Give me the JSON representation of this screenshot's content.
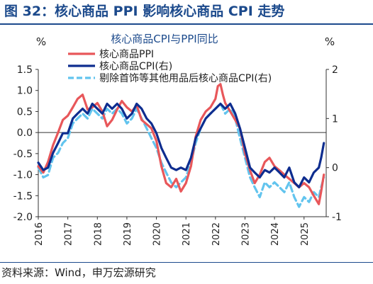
{
  "figure_title": "图 32：核心商品 PPI 影响核心商品 CPI 走势",
  "source": "资料来源：Wind，申万宏源研究",
  "chart_data": {
    "type": "line",
    "title": "核心商品CPI与PPI同比",
    "left_unit": "%",
    "right_unit": "%",
    "y_left_range": [
      -2.0,
      1.5
    ],
    "y_left_ticks": [
      "1.5",
      "1.0",
      "0.5",
      "0.0",
      "-0.5",
      "-1.0",
      "-1.5",
      "-2.0"
    ],
    "y_right_range": [
      -1,
      2
    ],
    "y_right_ticks": [
      "2",
      "1",
      "0",
      "-1"
    ],
    "x_range": [
      2016.0,
      2025.75
    ],
    "x_ticks": [
      "2016",
      "2017",
      "2018",
      "2019",
      "2020",
      "2021",
      "2022",
      "2023",
      "2024",
      "2025"
    ],
    "grid": false,
    "legend_position": "top-left",
    "colors": {
      "ppi": "#e8575a",
      "cpi": "#0e2d8f",
      "cpi_ex": "#62c4ee",
      "title": "#1c4a8c"
    },
    "series": [
      {
        "name": "核心商品PPI",
        "axis": "left",
        "style": "solid",
        "points": [
          [
            2016.0,
            -0.8
          ],
          [
            2016.17,
            -0.95
          ],
          [
            2016.33,
            -0.7
          ],
          [
            2016.5,
            -0.3
          ],
          [
            2016.67,
            0.0
          ],
          [
            2016.83,
            0.3
          ],
          [
            2017.0,
            0.4
          ],
          [
            2017.17,
            0.6
          ],
          [
            2017.33,
            0.8
          ],
          [
            2017.5,
            0.9
          ],
          [
            2017.67,
            0.55
          ],
          [
            2017.83,
            0.6
          ],
          [
            2018.0,
            0.7
          ],
          [
            2018.17,
            0.5
          ],
          [
            2018.33,
            0.15
          ],
          [
            2018.5,
            0.3
          ],
          [
            2018.67,
            0.55
          ],
          [
            2018.83,
            0.75
          ],
          [
            2019.0,
            0.6
          ],
          [
            2019.17,
            0.5
          ],
          [
            2019.33,
            0.65
          ],
          [
            2019.5,
            0.3
          ],
          [
            2019.67,
            0.2
          ],
          [
            2019.83,
            0.1
          ],
          [
            2020.0,
            -0.2
          ],
          [
            2020.17,
            -0.8
          ],
          [
            2020.33,
            -1.2
          ],
          [
            2020.5,
            -1.3
          ],
          [
            2020.67,
            -1.1
          ],
          [
            2020.83,
            -1.4
          ],
          [
            2021.0,
            -1.2
          ],
          [
            2021.17,
            -0.8
          ],
          [
            2021.33,
            -0.1
          ],
          [
            2021.5,
            0.3
          ],
          [
            2021.67,
            0.5
          ],
          [
            2021.83,
            0.6
          ],
          [
            2022.0,
            0.8
          ],
          [
            2022.08,
            1.1
          ],
          [
            2022.17,
            1.15
          ],
          [
            2022.25,
            0.9
          ],
          [
            2022.33,
            0.7
          ],
          [
            2022.5,
            0.5
          ],
          [
            2022.67,
            0.3
          ],
          [
            2022.83,
            0.1
          ],
          [
            2023.0,
            -0.5
          ],
          [
            2023.17,
            -0.9
          ],
          [
            2023.33,
            -1.2
          ],
          [
            2023.5,
            -1.0
          ],
          [
            2023.67,
            -0.7
          ],
          [
            2023.83,
            -0.6
          ],
          [
            2024.0,
            -0.8
          ],
          [
            2024.17,
            -0.9
          ],
          [
            2024.33,
            -1.0
          ],
          [
            2024.5,
            -1.1
          ],
          [
            2024.67,
            -1.2
          ],
          [
            2024.83,
            -1.3
          ],
          [
            2025.0,
            -1.2
          ],
          [
            2025.17,
            -1.3
          ],
          [
            2025.33,
            -1.5
          ],
          [
            2025.5,
            -1.7
          ],
          [
            2025.58,
            -1.4
          ],
          [
            2025.67,
            -1.0
          ]
        ]
      },
      {
        "name": "核心商品CPI(右)",
        "axis": "right",
        "style": "solid",
        "points": [
          [
            2016.0,
            0.1
          ],
          [
            2016.17,
            -0.05
          ],
          [
            2016.33,
            0.0
          ],
          [
            2016.5,
            0.3
          ],
          [
            2016.67,
            0.5
          ],
          [
            2016.83,
            0.7
          ],
          [
            2017.0,
            0.7
          ],
          [
            2017.17,
            1.0
          ],
          [
            2017.33,
            1.1
          ],
          [
            2017.5,
            1.2
          ],
          [
            2017.67,
            1.1
          ],
          [
            2017.83,
            1.3
          ],
          [
            2018.0,
            1.2
          ],
          [
            2018.17,
            1.1
          ],
          [
            2018.33,
            1.3
          ],
          [
            2018.5,
            1.2
          ],
          [
            2018.67,
            1.3
          ],
          [
            2018.83,
            1.2
          ],
          [
            2019.0,
            1.0
          ],
          [
            2019.17,
            1.1
          ],
          [
            2019.33,
            1.3
          ],
          [
            2019.5,
            1.2
          ],
          [
            2019.67,
            1.0
          ],
          [
            2019.83,
            0.9
          ],
          [
            2020.0,
            0.7
          ],
          [
            2020.17,
            0.4
          ],
          [
            2020.33,
            0.2
          ],
          [
            2020.5,
            0.0
          ],
          [
            2020.67,
            -0.05
          ],
          [
            2020.83,
            0.0
          ],
          [
            2021.0,
            -0.05
          ],
          [
            2021.17,
            0.2
          ],
          [
            2021.33,
            0.6
          ],
          [
            2021.5,
            0.8
          ],
          [
            2021.67,
            1.0
          ],
          [
            2021.83,
            1.1
          ],
          [
            2022.0,
            1.2
          ],
          [
            2022.17,
            1.3
          ],
          [
            2022.33,
            1.2
          ],
          [
            2022.5,
            1.3
          ],
          [
            2022.67,
            1.1
          ],
          [
            2022.83,
            0.8
          ],
          [
            2023.0,
            0.4
          ],
          [
            2023.17,
            0.0
          ],
          [
            2023.33,
            -0.1
          ],
          [
            2023.5,
            -0.2
          ],
          [
            2023.67,
            -0.05
          ],
          [
            2023.83,
            -0.1
          ],
          [
            2024.0,
            0.0
          ],
          [
            2024.17,
            -0.1
          ],
          [
            2024.33,
            -0.2
          ],
          [
            2024.5,
            0.0
          ],
          [
            2024.67,
            -0.3
          ],
          [
            2024.83,
            -0.4
          ],
          [
            2025.0,
            -0.2
          ],
          [
            2025.17,
            -0.3
          ],
          [
            2025.33,
            -0.1
          ],
          [
            2025.5,
            0.0
          ],
          [
            2025.58,
            0.2
          ],
          [
            2025.67,
            0.5
          ]
        ]
      },
      {
        "name": "剔除首饰等其他用品后核心商品CPI(右)",
        "axis": "right",
        "style": "dashed",
        "points": [
          [
            2016.0,
            0.0
          ],
          [
            2016.17,
            -0.2
          ],
          [
            2016.33,
            -0.15
          ],
          [
            2016.5,
            0.2
          ],
          [
            2016.67,
            0.3
          ],
          [
            2016.83,
            0.5
          ],
          [
            2017.0,
            0.6
          ],
          [
            2017.17,
            0.9
          ],
          [
            2017.33,
            1.0
          ],
          [
            2017.5,
            1.1
          ],
          [
            2017.67,
            1.0
          ],
          [
            2017.83,
            1.2
          ],
          [
            2018.0,
            1.1
          ],
          [
            2018.17,
            1.0
          ],
          [
            2018.33,
            1.2
          ],
          [
            2018.5,
            1.1
          ],
          [
            2018.67,
            1.2
          ],
          [
            2018.83,
            1.1
          ],
          [
            2019.0,
            0.9
          ],
          [
            2019.17,
            1.0
          ],
          [
            2019.33,
            1.2
          ],
          [
            2019.5,
            1.0
          ],
          [
            2019.67,
            0.8
          ],
          [
            2019.83,
            0.6
          ],
          [
            2020.0,
            0.4
          ],
          [
            2020.17,
            0.1
          ],
          [
            2020.33,
            -0.1
          ],
          [
            2020.5,
            -0.3
          ],
          [
            2020.67,
            -0.4
          ],
          [
            2020.83,
            -0.3
          ],
          [
            2021.0,
            -0.2
          ],
          [
            2021.17,
            0.1
          ],
          [
            2021.33,
            0.5
          ],
          [
            2021.5,
            0.8
          ],
          [
            2021.67,
            1.0
          ],
          [
            2021.83,
            1.1
          ],
          [
            2022.0,
            1.2
          ],
          [
            2022.17,
            1.3
          ],
          [
            2022.33,
            1.1
          ],
          [
            2022.5,
            1.2
          ],
          [
            2022.67,
            1.0
          ],
          [
            2022.83,
            0.6
          ],
          [
            2023.0,
            0.2
          ],
          [
            2023.17,
            -0.2
          ],
          [
            2023.33,
            -0.4
          ],
          [
            2023.5,
            -0.6
          ],
          [
            2023.67,
            -0.3
          ],
          [
            2023.83,
            -0.4
          ],
          [
            2024.0,
            -0.3
          ],
          [
            2024.17,
            -0.4
          ],
          [
            2024.33,
            -0.5
          ],
          [
            2024.5,
            -0.3
          ],
          [
            2024.67,
            -0.6
          ],
          [
            2024.83,
            -0.8
          ],
          [
            2025.0,
            -0.6
          ],
          [
            2025.17,
            -0.7
          ],
          [
            2025.33,
            -0.5
          ],
          [
            2025.5,
            -0.6
          ],
          [
            2025.58,
            -0.4
          ],
          [
            2025.67,
            -0.2
          ]
        ]
      }
    ]
  }
}
